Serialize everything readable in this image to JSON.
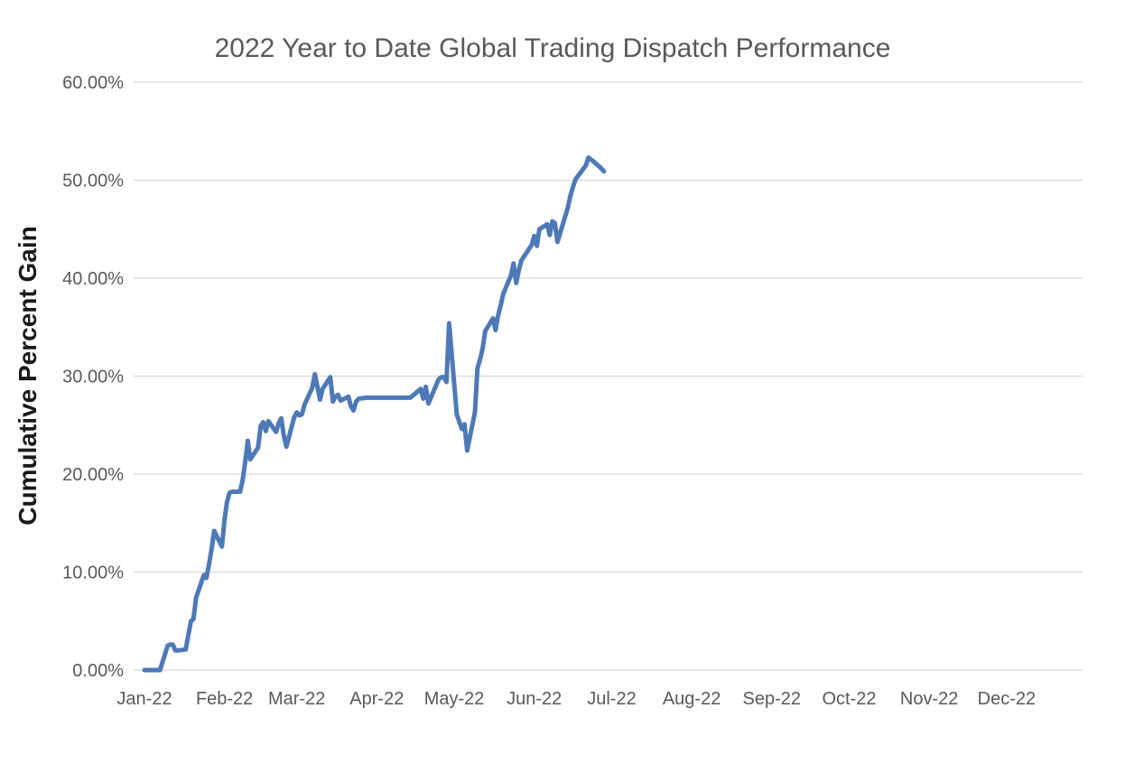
{
  "chart_data": {
    "type": "line",
    "title": "2022 Year to Date Global Trading Dispatch Performance",
    "xlabel": "",
    "ylabel": "Cumulative Percent Gain",
    "legend": "none",
    "grid": "horizontal",
    "ylim": [
      0,
      60
    ],
    "y_ticks": [
      0,
      10,
      20,
      30,
      40,
      50,
      60
    ],
    "y_tick_labels": [
      "0.00%",
      "10.00%",
      "20.00%",
      "30.00%",
      "40.00%",
      "50.00%",
      "60.00%"
    ],
    "x_range": [
      "2022-01-01",
      "2022-12-31"
    ],
    "x_tick_dates": [
      "2022-01-01",
      "2022-02-01",
      "2022-03-01",
      "2022-04-01",
      "2022-05-01",
      "2022-06-01",
      "2022-07-01",
      "2022-08-01",
      "2022-09-01",
      "2022-10-01",
      "2022-11-01",
      "2022-12-01"
    ],
    "x_tick_labels": [
      "Jan-22",
      "Feb-22",
      "Mar-22",
      "Apr-22",
      "May-22",
      "Jun-22",
      "Jul-22",
      "Aug-22",
      "Sep-22",
      "Oct-22",
      "Nov-22",
      "Dec-22"
    ],
    "series": [
      {
        "name": "Cumulative Percent Gain",
        "color": "#4E79B7",
        "unit": "%",
        "points": [
          [
            "2022-01-01",
            0.0
          ],
          [
            "2022-01-04",
            0.0
          ],
          [
            "2022-01-06",
            0.0
          ],
          [
            "2022-01-07",
            0.0
          ],
          [
            "2022-01-10",
            2.5
          ],
          [
            "2022-01-11",
            2.6
          ],
          [
            "2022-01-12",
            2.6
          ],
          [
            "2022-01-13",
            2.0
          ],
          [
            "2022-01-14",
            2.0
          ],
          [
            "2022-01-17",
            2.1
          ],
          [
            "2022-01-18",
            3.6
          ],
          [
            "2022-01-19",
            5.0
          ],
          [
            "2022-01-20",
            5.2
          ],
          [
            "2022-01-21",
            7.4
          ],
          [
            "2022-01-24",
            9.7
          ],
          [
            "2022-01-25",
            9.4
          ],
          [
            "2022-01-26",
            10.8
          ],
          [
            "2022-01-27",
            12.3
          ],
          [
            "2022-01-28",
            14.2
          ],
          [
            "2022-01-31",
            12.6
          ],
          [
            "2022-02-01",
            15.3
          ],
          [
            "2022-02-02",
            17.2
          ],
          [
            "2022-02-03",
            18.1
          ],
          [
            "2022-02-04",
            18.2
          ],
          [
            "2022-02-07",
            18.2
          ],
          [
            "2022-02-08",
            19.3
          ],
          [
            "2022-02-09",
            21.2
          ],
          [
            "2022-02-10",
            23.4
          ],
          [
            "2022-02-11",
            21.5
          ],
          [
            "2022-02-14",
            22.7
          ],
          [
            "2022-02-15",
            24.9
          ],
          [
            "2022-02-16",
            25.3
          ],
          [
            "2022-02-17",
            24.4
          ],
          [
            "2022-02-18",
            25.4
          ],
          [
            "2022-02-21",
            24.3
          ],
          [
            "2022-02-22",
            25.2
          ],
          [
            "2022-02-23",
            25.7
          ],
          [
            "2022-02-24",
            23.9
          ],
          [
            "2022-02-25",
            22.8
          ],
          [
            "2022-02-28",
            25.8
          ],
          [
            "2022-03-01",
            26.3
          ],
          [
            "2022-03-02",
            26.0
          ],
          [
            "2022-03-03",
            26.1
          ],
          [
            "2022-03-04",
            27.1
          ],
          [
            "2022-03-07",
            28.8
          ],
          [
            "2022-03-08",
            30.2
          ],
          [
            "2022-03-09",
            28.9
          ],
          [
            "2022-03-10",
            27.6
          ],
          [
            "2022-03-11",
            28.7
          ],
          [
            "2022-03-14",
            29.9
          ],
          [
            "2022-03-15",
            27.4
          ],
          [
            "2022-03-16",
            27.9
          ],
          [
            "2022-03-17",
            28.1
          ],
          [
            "2022-03-18",
            27.5
          ],
          [
            "2022-03-21",
            27.9
          ],
          [
            "2022-03-22",
            26.9
          ],
          [
            "2022-03-23",
            26.5
          ],
          [
            "2022-03-24",
            27.4
          ],
          [
            "2022-03-25",
            27.7
          ],
          [
            "2022-03-28",
            27.8
          ],
          [
            "2022-03-31",
            27.8
          ],
          [
            "2022-04-04",
            27.8
          ],
          [
            "2022-04-07",
            27.8
          ],
          [
            "2022-04-11",
            27.8
          ],
          [
            "2022-04-14",
            27.8
          ],
          [
            "2022-04-18",
            28.7
          ],
          [
            "2022-04-19",
            27.7
          ],
          [
            "2022-04-20",
            28.9
          ],
          [
            "2022-04-21",
            27.2
          ],
          [
            "2022-04-25",
            29.7
          ],
          [
            "2022-04-26",
            29.9
          ],
          [
            "2022-04-27",
            29.9
          ],
          [
            "2022-04-28",
            29.4
          ],
          [
            "2022-04-29",
            35.4
          ],
          [
            "2022-05-02",
            26.1
          ],
          [
            "2022-05-03",
            25.3
          ],
          [
            "2022-05-04",
            24.6
          ],
          [
            "2022-05-05",
            25.1
          ],
          [
            "2022-05-06",
            22.4
          ],
          [
            "2022-05-09",
            26.3
          ],
          [
            "2022-05-10",
            30.8
          ],
          [
            "2022-05-11",
            31.7
          ],
          [
            "2022-05-12",
            32.8
          ],
          [
            "2022-05-13",
            34.6
          ],
          [
            "2022-05-16",
            35.9
          ],
          [
            "2022-05-17",
            34.7
          ],
          [
            "2022-05-18",
            36.2
          ],
          [
            "2022-05-19",
            37.2
          ],
          [
            "2022-05-20",
            38.4
          ],
          [
            "2022-05-23",
            40.3
          ],
          [
            "2022-05-24",
            41.5
          ],
          [
            "2022-05-25",
            39.5
          ],
          [
            "2022-05-26",
            40.8
          ],
          [
            "2022-05-27",
            41.8
          ],
          [
            "2022-05-31",
            43.4
          ],
          [
            "2022-06-01",
            44.3
          ],
          [
            "2022-06-02",
            43.3
          ],
          [
            "2022-06-03",
            45.0
          ],
          [
            "2022-06-06",
            45.5
          ],
          [
            "2022-06-07",
            44.4
          ],
          [
            "2022-06-08",
            45.8
          ],
          [
            "2022-06-09",
            45.6
          ],
          [
            "2022-06-10",
            43.7
          ],
          [
            "2022-06-13",
            46.3
          ],
          [
            "2022-06-14",
            47.2
          ],
          [
            "2022-06-15",
            48.4
          ],
          [
            "2022-06-16",
            49.3
          ],
          [
            "2022-06-17",
            50.1
          ],
          [
            "2022-06-21",
            51.5
          ],
          [
            "2022-06-22",
            52.3
          ],
          [
            "2022-06-23",
            52.1
          ],
          [
            "2022-06-24",
            51.9
          ],
          [
            "2022-06-27",
            51.2
          ],
          [
            "2022-06-28",
            50.9
          ]
        ]
      }
    ],
    "colors": {
      "line": "#4E79B7",
      "gridline": "#D9D9D9",
      "tick_text": "#595959",
      "title_text": "#595959",
      "y_axis_title_text": "#1a1a1a",
      "background": "#ffffff"
    }
  }
}
